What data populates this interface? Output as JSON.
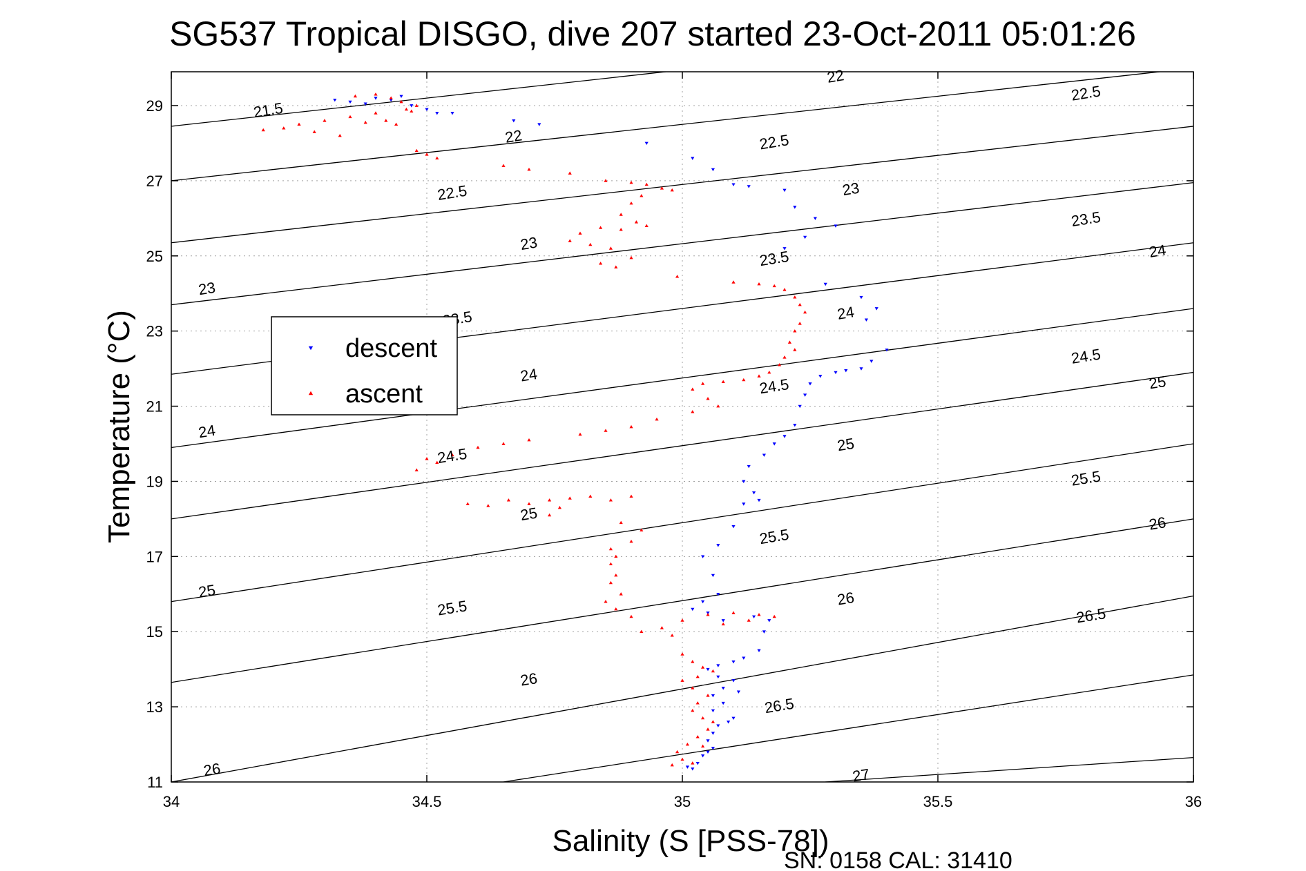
{
  "chart_data": {
    "type": "scatter",
    "title": "SG537 Tropical DISGO, dive 207 started 23-Oct-2011 05:01:26",
    "xlabel": "Salinity (S [PSS-78])",
    "ylabel": "Temperature (°C)",
    "footer": "SN: 0158  CAL: 31410",
    "xlim": [
      34,
      36
    ],
    "ylim": [
      11,
      29.9
    ],
    "xticks": [
      34,
      34.5,
      35,
      35.5,
      36
    ],
    "xtick_labels": [
      "34",
      "34.5",
      "35",
      "35.5",
      "36"
    ],
    "yticks": [
      11,
      13,
      15,
      17,
      19,
      21,
      23,
      25,
      27,
      29
    ],
    "ytick_labels": [
      "11",
      "13",
      "15",
      "17",
      "19",
      "21",
      "23",
      "25",
      "27",
      "29"
    ],
    "grid": true,
    "legend_position": "left",
    "colors": {
      "descent": "#0000ff",
      "ascent": "#ff0000",
      "contour": "#000000",
      "grid": "#a0a0a0"
    },
    "series": [
      {
        "name": "descent",
        "marker": "triangle-down",
        "points": [
          [
            34.32,
            29.15
          ],
          [
            34.35,
            29.1
          ],
          [
            34.38,
            29.05
          ],
          [
            34.4,
            29.2
          ],
          [
            34.43,
            29.15
          ],
          [
            34.45,
            29.25
          ],
          [
            34.47,
            29.0
          ],
          [
            34.5,
            28.9
          ],
          [
            34.52,
            28.8
          ],
          [
            34.55,
            28.8
          ],
          [
            34.67,
            28.6
          ],
          [
            34.72,
            28.5
          ],
          [
            34.93,
            28.0
          ],
          [
            35.02,
            27.6
          ],
          [
            35.06,
            27.3
          ],
          [
            35.1,
            26.9
          ],
          [
            35.13,
            26.85
          ],
          [
            35.2,
            26.75
          ],
          [
            35.22,
            26.3
          ],
          [
            35.26,
            26.0
          ],
          [
            35.3,
            25.8
          ],
          [
            35.24,
            25.5
          ],
          [
            35.2,
            25.2
          ],
          [
            35.28,
            24.25
          ],
          [
            35.35,
            23.9
          ],
          [
            35.38,
            23.6
          ],
          [
            35.36,
            23.3
          ],
          [
            35.4,
            22.5
          ],
          [
            35.37,
            22.2
          ],
          [
            35.35,
            22.0
          ],
          [
            35.32,
            21.95
          ],
          [
            35.3,
            21.9
          ],
          [
            35.27,
            21.8
          ],
          [
            35.25,
            21.6
          ],
          [
            35.24,
            21.3
          ],
          [
            35.23,
            21.0
          ],
          [
            35.22,
            20.5
          ],
          [
            35.2,
            20.2
          ],
          [
            35.18,
            20.0
          ],
          [
            35.16,
            19.7
          ],
          [
            35.13,
            19.4
          ],
          [
            35.12,
            19.0
          ],
          [
            35.14,
            18.7
          ],
          [
            35.15,
            18.5
          ],
          [
            35.12,
            18.4
          ],
          [
            35.1,
            17.8
          ],
          [
            35.07,
            17.3
          ],
          [
            35.04,
            17.0
          ],
          [
            35.06,
            16.5
          ],
          [
            35.07,
            16.0
          ],
          [
            35.04,
            15.8
          ],
          [
            35.02,
            15.6
          ],
          [
            35.05,
            15.5
          ],
          [
            35.08,
            15.3
          ],
          [
            35.14,
            15.4
          ],
          [
            35.17,
            15.3
          ],
          [
            35.16,
            15.0
          ],
          [
            35.15,
            14.5
          ],
          [
            35.12,
            14.3
          ],
          [
            35.1,
            14.2
          ],
          [
            35.07,
            14.1
          ],
          [
            35.05,
            14.0
          ],
          [
            35.07,
            13.8
          ],
          [
            35.1,
            13.7
          ],
          [
            35.08,
            13.5
          ],
          [
            35.06,
            13.3
          ],
          [
            35.08,
            13.1
          ],
          [
            35.06,
            12.9
          ],
          [
            35.1,
            12.7
          ],
          [
            35.07,
            12.5
          ],
          [
            35.06,
            12.3
          ],
          [
            35.05,
            12.1
          ],
          [
            35.06,
            11.9
          ],
          [
            35.04,
            11.7
          ],
          [
            35.03,
            11.5
          ],
          [
            35.02,
            11.35
          ],
          [
            35.01,
            11.4
          ],
          [
            35.05,
            11.8
          ],
          [
            35.09,
            12.6
          ],
          [
            35.11,
            13.4
          ]
        ]
      },
      {
        "name": "ascent",
        "marker": "triangle-up",
        "points": [
          [
            34.18,
            28.35
          ],
          [
            34.22,
            28.4
          ],
          [
            34.25,
            28.5
          ],
          [
            34.28,
            28.3
          ],
          [
            34.3,
            28.6
          ],
          [
            34.33,
            28.2
          ],
          [
            34.35,
            28.7
          ],
          [
            34.38,
            28.55
          ],
          [
            34.4,
            28.8
          ],
          [
            34.42,
            28.6
          ],
          [
            34.44,
            28.5
          ],
          [
            34.46,
            28.9
          ],
          [
            34.48,
            29.0
          ],
          [
            34.4,
            29.3
          ],
          [
            34.36,
            29.25
          ],
          [
            34.45,
            29.1
          ],
          [
            34.43,
            29.2
          ],
          [
            34.47,
            28.85
          ],
          [
            34.48,
            27.8
          ],
          [
            34.5,
            27.7
          ],
          [
            34.52,
            27.6
          ],
          [
            34.65,
            27.4
          ],
          [
            34.7,
            27.3
          ],
          [
            34.78,
            27.2
          ],
          [
            34.85,
            27.0
          ],
          [
            34.9,
            26.95
          ],
          [
            34.93,
            26.9
          ],
          [
            34.96,
            26.8
          ],
          [
            34.98,
            26.75
          ],
          [
            34.92,
            26.6
          ],
          [
            34.9,
            26.4
          ],
          [
            34.88,
            26.1
          ],
          [
            34.91,
            25.9
          ],
          [
            34.93,
            25.8
          ],
          [
            34.88,
            25.7
          ],
          [
            34.84,
            25.75
          ],
          [
            34.8,
            25.6
          ],
          [
            34.78,
            25.4
          ],
          [
            34.82,
            25.3
          ],
          [
            34.86,
            25.2
          ],
          [
            34.9,
            24.95
          ],
          [
            34.87,
            24.7
          ],
          [
            34.84,
            24.8
          ],
          [
            34.99,
            24.45
          ],
          [
            35.1,
            24.3
          ],
          [
            35.15,
            24.25
          ],
          [
            35.18,
            24.2
          ],
          [
            35.2,
            24.1
          ],
          [
            35.22,
            23.9
          ],
          [
            35.23,
            23.7
          ],
          [
            35.24,
            23.5
          ],
          [
            35.23,
            23.2
          ],
          [
            35.22,
            23.0
          ],
          [
            35.21,
            22.7
          ],
          [
            35.22,
            22.5
          ],
          [
            35.2,
            22.3
          ],
          [
            35.19,
            22.1
          ],
          [
            35.17,
            21.9
          ],
          [
            35.15,
            21.8
          ],
          [
            35.12,
            21.7
          ],
          [
            35.08,
            21.65
          ],
          [
            35.04,
            21.6
          ],
          [
            35.02,
            21.45
          ],
          [
            35.05,
            21.2
          ],
          [
            35.07,
            21.0
          ],
          [
            35.02,
            20.85
          ],
          [
            34.95,
            20.65
          ],
          [
            34.9,
            20.45
          ],
          [
            34.85,
            20.35
          ],
          [
            34.8,
            20.25
          ],
          [
            34.7,
            20.1
          ],
          [
            34.65,
            20.0
          ],
          [
            34.6,
            19.9
          ],
          [
            34.55,
            19.7
          ],
          [
            34.5,
            19.6
          ],
          [
            34.48,
            19.3
          ],
          [
            34.52,
            19.5
          ],
          [
            34.58,
            18.4
          ],
          [
            34.62,
            18.35
          ],
          [
            34.66,
            18.5
          ],
          [
            34.7,
            18.4
          ],
          [
            34.74,
            18.5
          ],
          [
            34.78,
            18.55
          ],
          [
            34.82,
            18.6
          ],
          [
            34.86,
            18.5
          ],
          [
            34.9,
            18.6
          ],
          [
            34.76,
            18.3
          ],
          [
            34.74,
            18.1
          ],
          [
            34.88,
            17.9
          ],
          [
            34.92,
            17.7
          ],
          [
            34.9,
            17.4
          ],
          [
            34.86,
            17.2
          ],
          [
            34.87,
            17.0
          ],
          [
            34.86,
            16.8
          ],
          [
            34.87,
            16.5
          ],
          [
            34.86,
            16.3
          ],
          [
            34.88,
            16.0
          ],
          [
            34.85,
            15.8
          ],
          [
            34.87,
            15.6
          ],
          [
            34.9,
            15.4
          ],
          [
            34.92,
            15.0
          ],
          [
            34.96,
            15.1
          ],
          [
            35.0,
            15.3
          ],
          [
            35.05,
            15.45
          ],
          [
            35.1,
            15.5
          ],
          [
            35.15,
            15.45
          ],
          [
            35.18,
            15.4
          ],
          [
            35.13,
            15.3
          ],
          [
            35.08,
            15.2
          ],
          [
            34.98,
            14.9
          ],
          [
            35.0,
            14.4
          ],
          [
            35.02,
            14.2
          ],
          [
            35.04,
            14.05
          ],
          [
            35.06,
            13.95
          ],
          [
            35.03,
            13.8
          ],
          [
            35.0,
            13.7
          ],
          [
            35.02,
            13.5
          ],
          [
            35.05,
            13.3
          ],
          [
            35.03,
            13.1
          ],
          [
            35.02,
            12.9
          ],
          [
            35.04,
            12.7
          ],
          [
            35.06,
            12.6
          ],
          [
            35.05,
            12.4
          ],
          [
            35.03,
            12.2
          ],
          [
            35.01,
            12.0
          ],
          [
            34.99,
            11.8
          ],
          [
            35.0,
            11.6
          ],
          [
            35.02,
            11.5
          ],
          [
            34.98,
            11.45
          ],
          [
            35.04,
            11.95
          ]
        ]
      }
    ],
    "contours": [
      {
        "sigma": "21.5",
        "label_at": [
          34.19,
          28.85
        ]
      },
      {
        "sigma": "22",
        "label_at": [
          34.67,
          28.15
        ]
      },
      {
        "sigma": "22",
        "label_at": [
          35.3,
          29.75
        ]
      },
      {
        "sigma": "22.5",
        "label_at": [
          34.55,
          26.65
        ]
      },
      {
        "sigma": "22.5",
        "label_at": [
          35.18,
          28.0
        ]
      },
      {
        "sigma": "22.5",
        "label_at": [
          35.79,
          29.3
        ]
      },
      {
        "sigma": "23",
        "label_at": [
          34.07,
          24.1
        ]
      },
      {
        "sigma": "23",
        "label_at": [
          34.7,
          25.3
        ]
      },
      {
        "sigma": "23",
        "label_at": [
          35.33,
          26.75
        ]
      },
      {
        "sigma": "23.5",
        "label_at": [
          35.18,
          24.9
        ]
      },
      {
        "sigma": "23.5",
        "label_at": [
          35.79,
          25.95
        ]
      },
      {
        "sigma": "23.5",
        "label_at": [
          34.56,
          23.3
        ]
      },
      {
        "sigma": "24",
        "label_at": [
          34.07,
          20.3
        ]
      },
      {
        "sigma": "24",
        "label_at": [
          34.7,
          21.8
        ]
      },
      {
        "sigma": "24",
        "label_at": [
          35.32,
          23.45
        ]
      },
      {
        "sigma": "24",
        "label_at": [
          35.93,
          25.1
        ]
      },
      {
        "sigma": "24.5",
        "label_at": [
          34.55,
          19.65
        ]
      },
      {
        "sigma": "24.5",
        "label_at": [
          35.18,
          21.5
        ]
      },
      {
        "sigma": "24.5",
        "label_at": [
          35.79,
          22.3
        ]
      },
      {
        "sigma": "25",
        "label_at": [
          34.07,
          16.05
        ]
      },
      {
        "sigma": "25",
        "label_at": [
          34.7,
          18.1
        ]
      },
      {
        "sigma": "25",
        "label_at": [
          35.32,
          19.95
        ]
      },
      {
        "sigma": "25",
        "label_at": [
          35.93,
          21.6
        ]
      },
      {
        "sigma": "25.5",
        "label_at": [
          34.55,
          15.6
        ]
      },
      {
        "sigma": "25.5",
        "label_at": [
          35.18,
          17.5
        ]
      },
      {
        "sigma": "25.5",
        "label_at": [
          35.79,
          19.05
        ]
      },
      {
        "sigma": "26",
        "label_at": [
          34.08,
          11.3
        ]
      },
      {
        "sigma": "26",
        "label_at": [
          34.7,
          13.7
        ]
      },
      {
        "sigma": "26",
        "label_at": [
          35.32,
          15.85
        ]
      },
      {
        "sigma": "26",
        "label_at": [
          35.93,
          17.85
        ]
      },
      {
        "sigma": "26.5",
        "label_at": [
          35.19,
          13.0
        ]
      },
      {
        "sigma": "26.5",
        "label_at": [
          35.8,
          15.4
        ]
      },
      {
        "sigma": "27",
        "label_at": [
          35.35,
          11.15
        ]
      }
    ],
    "contour_lines": [
      [
        [
          34.0,
          28.45
        ],
        [
          36.0,
          31.45
        ]
      ],
      [
        [
          34.0,
          27.0
        ],
        [
          36.0,
          30.0
        ]
      ],
      [
        [
          34.0,
          25.35
        ],
        [
          36.0,
          28.45
        ]
      ],
      [
        [
          34.0,
          23.7
        ],
        [
          36.0,
          26.95
        ]
      ],
      [
        [
          34.0,
          21.85
        ],
        [
          36.0,
          25.35
        ]
      ],
      [
        [
          34.0,
          19.9
        ],
        [
          36.0,
          23.6
        ]
      ],
      [
        [
          34.0,
          18.0
        ],
        [
          36.0,
          21.9
        ]
      ],
      [
        [
          34.0,
          15.8
        ],
        [
          36.0,
          20.0
        ]
      ],
      [
        [
          34.0,
          13.65
        ],
        [
          36.0,
          18.0
        ]
      ],
      [
        [
          34.0,
          11.0
        ],
        [
          36.0,
          15.95
        ]
      ],
      [
        [
          34.65,
          11.0
        ],
        [
          36.0,
          13.85
        ]
      ],
      [
        [
          35.28,
          11.0
        ],
        [
          36.0,
          11.65
        ]
      ]
    ]
  },
  "legend": {
    "entries": [
      "descent",
      "ascent"
    ]
  }
}
